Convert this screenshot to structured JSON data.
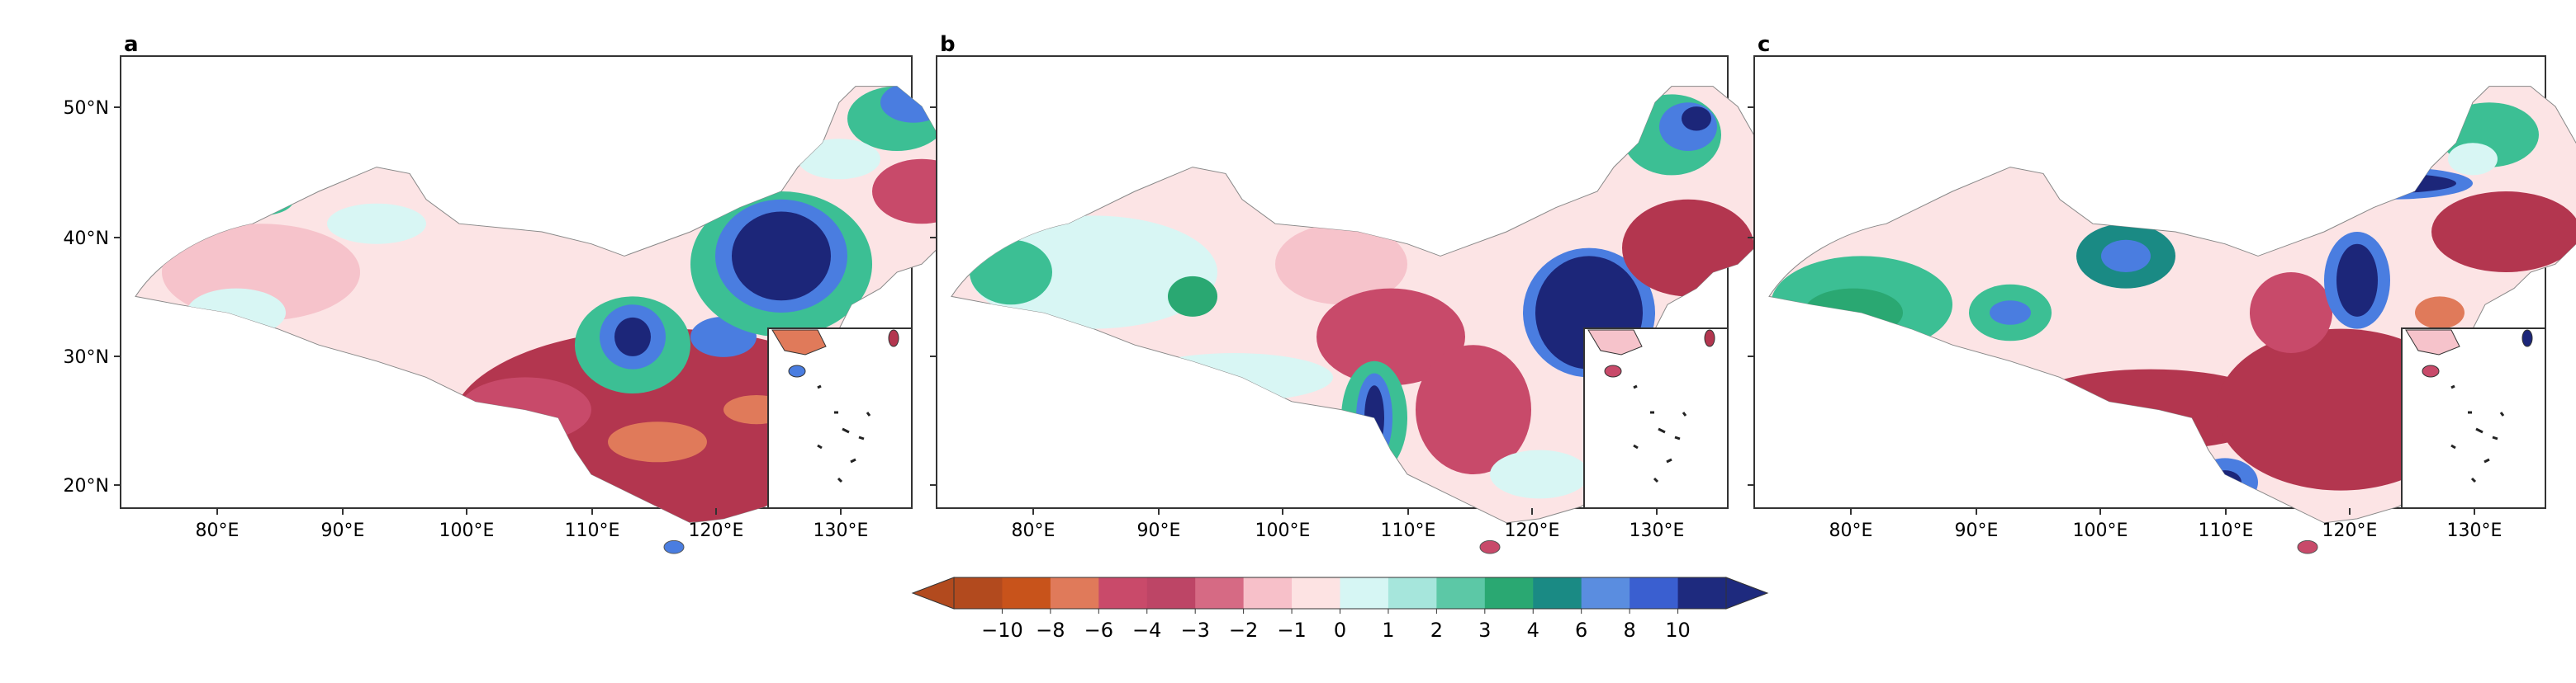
{
  "panels": [
    {
      "id": "a",
      "label": "a"
    },
    {
      "id": "b",
      "label": "b"
    },
    {
      "id": "c",
      "label": "c"
    }
  ],
  "axes": {
    "y_ticks": [
      "50°N",
      "40°N",
      "30°N",
      "20°N"
    ],
    "x_ticks": [
      "80°E",
      "90°E",
      "100°E",
      "110°E",
      "120°E",
      "130°E"
    ]
  },
  "colorbar": {
    "labels": [
      "−10",
      "−8",
      "−6",
      "−4",
      "−3",
      "−2",
      "−1",
      "0",
      "1",
      "2",
      "3",
      "4",
      "6",
      "8",
      "10"
    ],
    "colors": [
      "#b24a1e",
      "#c8531b",
      "#e07a5a",
      "#c94a6a",
      "#bd4566",
      "#d66a84",
      "#f7c0c9",
      "#fde3e3",
      "#d6f6f4",
      "#a6e6dc",
      "#5cc8a6",
      "#2aa872",
      "#1a8a84",
      "#5a8de0",
      "#3a5fd0",
      "#1e2a7e"
    ],
    "extend_low_color": "#b24a1e",
    "extend_high_color": "#1e2a7e"
  },
  "palette": {
    "dark_red": "#b3364f",
    "mid_red": "#c84a6a",
    "pink": "#f6c3cb",
    "light_pink": "#fce4e5",
    "light_cyan": "#d8f6f4",
    "teal": "#3cbf94",
    "green": "#2aa872",
    "blue": "#4a7de0",
    "navy": "#1c2679",
    "orange": "#e07a5a"
  }
}
